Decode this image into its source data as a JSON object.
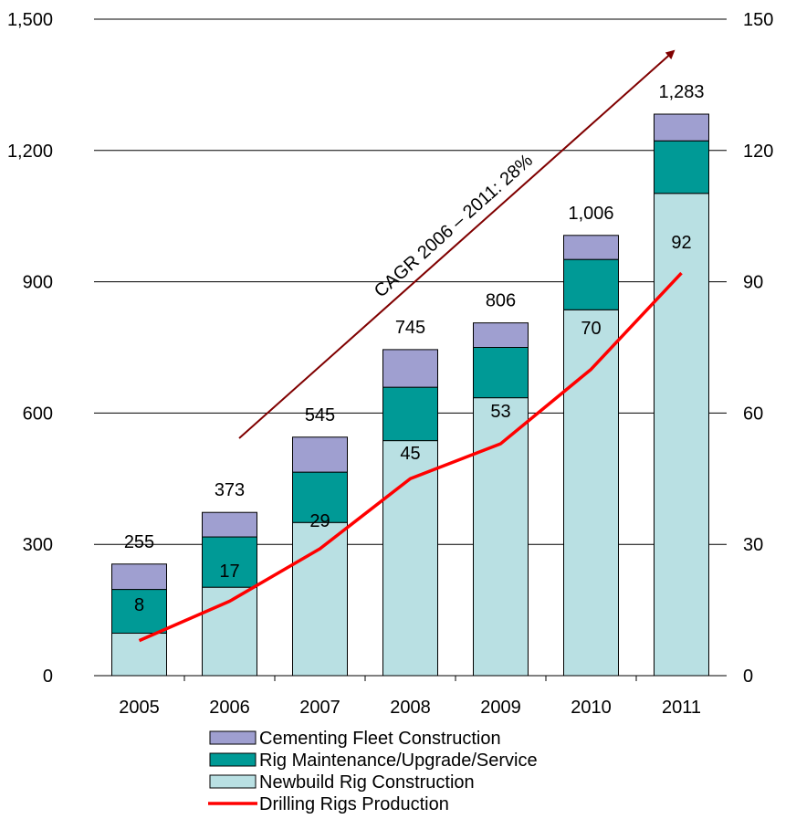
{
  "chart_data": {
    "type": "bar",
    "stacked": true,
    "categories": [
      "2005",
      "2006",
      "2007",
      "2008",
      "2009",
      "2010",
      "2011"
    ],
    "series": [
      {
        "name": "Newbuild Rig Construction",
        "values": [
          97,
          202,
          350,
          537,
          635,
          836,
          1102
        ],
        "color": "#b9e0e3",
        "axis": "left"
      },
      {
        "name": "Rig Maintenance/Upgrade/Service",
        "values": [
          100,
          115,
          115,
          122,
          115,
          115,
          120
        ],
        "color": "#009a96",
        "axis": "left"
      },
      {
        "name": "Cementing Fleet Construction",
        "values": [
          58,
          56,
          80,
          86,
          56,
          55,
          61
        ],
        "color": "#9f9fd0",
        "axis": "left"
      },
      {
        "name": "Drilling Rigs Production",
        "values": [
          8,
          17,
          29,
          45,
          53,
          70,
          92
        ],
        "color": "#ff0000",
        "axis": "right",
        "kind": "line"
      }
    ],
    "totals": [
      "255",
      "373",
      "545",
      "745",
      "806",
      "1,006",
      "1,283"
    ],
    "line_labels": [
      "8",
      "17",
      "29",
      "45",
      "53",
      "70",
      "92"
    ],
    "y_left": {
      "min": 0,
      "max": 1500,
      "ticks": [
        0,
        300,
        600,
        900,
        1200,
        1500
      ],
      "tick_labels": [
        "0",
        "300",
        "600",
        "900",
        "1,200",
        "1,500"
      ]
    },
    "y_right": {
      "min": 0,
      "max": 150,
      "ticks": [
        0,
        30,
        60,
        90,
        120,
        150
      ],
      "tick_labels": [
        "0",
        "30",
        "60",
        "90",
        "120",
        "150"
      ]
    },
    "annotation": {
      "text": "CAGR 2006 – 2011: 28%",
      "arrow_color": "#800000"
    },
    "grid": true,
    "legend_position": "bottom",
    "legend_order": [
      2,
      1,
      0,
      3
    ]
  }
}
